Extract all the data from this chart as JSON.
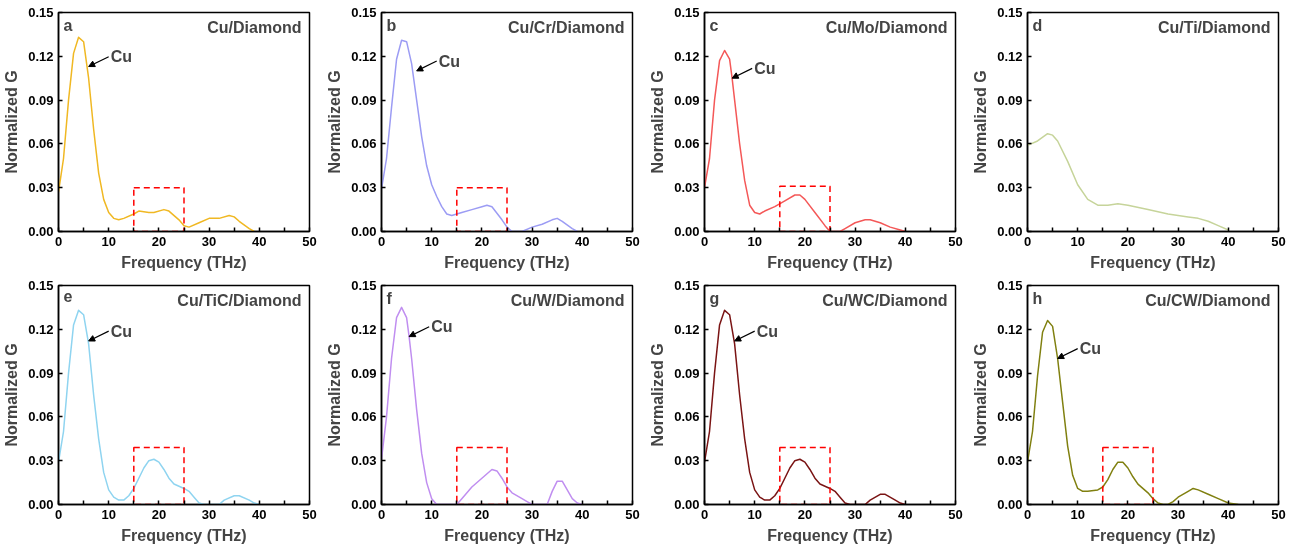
{
  "chart_data": [
    {
      "type": "line",
      "title": "Cu/Diamond",
      "xlabel": "Frequency (THz)",
      "ylabel": "Normalized G",
      "annotations": [
        "a",
        {
          "text": "Cu",
          "x": 6,
          "y": 0.113
        }
      ],
      "xlim": [
        0,
        50
      ],
      "ylim": [
        0,
        0.15
      ],
      "xticks": [
        0,
        {
          "value": 5,
          "label": null
        },
        10,
        {
          "value": 15,
          "label": null
        },
        20,
        {
          "value": 25,
          "label": null
        },
        30,
        {
          "value": 35,
          "label": null
        },
        40,
        {
          "value": 45,
          "label": null
        },
        50
      ],
      "yticks": [
        {
          "value": 0,
          "label": "0.00"
        },
        {
          "value": 0.03,
          "label": "0.03"
        },
        {
          "value": 0.06,
          "label": "0.06"
        },
        {
          "value": 0.09,
          "label": "0.09"
        },
        {
          "value": 0.12,
          "label": "0.12"
        },
        {
          "value": 0.15,
          "label": "0.15"
        }
      ],
      "grid": false,
      "line_style": "solid",
      "series": [
        {
          "color": "#f0b823",
          "x": [
            0,
            1,
            2,
            3,
            4,
            5,
            6,
            7,
            8,
            9,
            10,
            11,
            12,
            13,
            15,
            16,
            18,
            19,
            21,
            22,
            24,
            25,
            26,
            28,
            30,
            32,
            34,
            35,
            36,
            38,
            39
          ],
          "values": [
            0.027,
            0.05,
            0.09,
            0.122,
            0.133,
            0.13,
            0.105,
            0.07,
            0.04,
            0.022,
            0.013,
            0.009,
            0.008,
            0.009,
            0.012,
            0.014,
            0.013,
            0.013,
            0.015,
            0.014,
            0.008,
            0.004,
            0.003,
            0.006,
            0.009,
            0.009,
            0.011,
            0.01,
            0.007,
            0.002,
            0.0
          ]
        },
        {
          "type": "bar",
          "color": "#ff0000",
          "line_style": "dashed",
          "x": [
            20
          ],
          "values": [
            0.03
          ]
        }
      ]
    },
    {
      "type": "line",
      "title": "Cu/Cr/Diamond",
      "xlabel": "Frequency (THz)",
      "ylabel": "Normalized G",
      "annotations": [
        "b",
        {
          "text": "Cu",
          "x": 7,
          "y": 0.11
        }
      ],
      "xlim": [
        0,
        50
      ],
      "ylim": [
        0,
        0.15
      ],
      "xticks": [
        0,
        {
          "value": 5,
          "label": null
        },
        10,
        {
          "value": 15,
          "label": null
        },
        20,
        {
          "value": 25,
          "label": null
        },
        30,
        {
          "value": 35,
          "label": null
        },
        40,
        {
          "value": 45,
          "label": null
        },
        50
      ],
      "yticks": [
        {
          "value": 0,
          "label": "0.00"
        },
        {
          "value": 0.03,
          "label": "0.03"
        },
        {
          "value": 0.06,
          "label": "0.06"
        },
        {
          "value": 0.09,
          "label": "0.09"
        },
        {
          "value": 0.12,
          "label": "0.12"
        },
        {
          "value": 0.15,
          "label": "0.15"
        }
      ],
      "grid": false,
      "line_style": "solid",
      "series": [
        {
          "color": "#9c9cf4",
          "x": [
            0,
            1,
            2,
            3,
            4,
            5,
            6,
            7,
            8,
            9,
            10,
            11,
            12,
            13,
            14,
            16,
            18,
            20,
            21,
            22,
            24,
            25,
            26,
            27,
            28,
            30,
            32,
            34,
            35,
            36,
            38,
            39
          ],
          "values": [
            0.029,
            0.05,
            0.085,
            0.118,
            0.131,
            0.13,
            0.115,
            0.09,
            0.065,
            0.045,
            0.032,
            0.024,
            0.017,
            0.012,
            0.011,
            0.013,
            0.015,
            0.017,
            0.018,
            0.017,
            0.008,
            0.003,
            0.0,
            null,
            0.0,
            0.003,
            0.005,
            0.008,
            0.009,
            0.007,
            0.002,
            0.0
          ]
        },
        {
          "type": "bar",
          "color": "#ff0000",
          "line_style": "dashed",
          "x": [
            20
          ],
          "values": [
            0.03
          ]
        }
      ]
    },
    {
      "type": "line",
      "title": "Cu/Mo/Diamond",
      "xlabel": "Frequency (THz)",
      "ylabel": "Normalized G",
      "annotations": [
        "c",
        {
          "text": "Cu",
          "x": 5.5,
          "y": 0.105
        }
      ],
      "xlim": [
        0,
        50
      ],
      "ylim": [
        0,
        0.15
      ],
      "xticks": [
        0,
        {
          "value": 5,
          "label": null
        },
        10,
        {
          "value": 15,
          "label": null
        },
        20,
        {
          "value": 25,
          "label": null
        },
        30,
        {
          "value": 35,
          "label": null
        },
        40,
        {
          "value": 45,
          "label": null
        },
        50
      ],
      "yticks": [
        {
          "value": 0,
          "label": "0.00"
        },
        {
          "value": 0.03,
          "label": "0.03"
        },
        {
          "value": 0.06,
          "label": "0.06"
        },
        {
          "value": 0.09,
          "label": "0.09"
        },
        {
          "value": 0.12,
          "label": "0.12"
        },
        {
          "value": 0.15,
          "label": "0.15"
        }
      ],
      "grid": false,
      "line_style": "solid",
      "series": [
        {
          "color": "#f45858",
          "x": [
            0,
            1,
            2,
            3,
            4,
            5,
            5.5,
            6,
            7,
            8,
            9,
            10,
            11,
            12,
            14,
            16,
            18,
            19,
            20,
            22,
            24,
            25,
            27,
            28,
            30,
            32,
            33,
            35,
            37,
            39,
            40
          ],
          "values": [
            0.03,
            0.05,
            0.09,
            0.117,
            0.124,
            0.118,
            0.105,
            0.09,
            0.06,
            0.035,
            0.018,
            0.013,
            0.012,
            0.014,
            0.017,
            0.021,
            0.025,
            0.025,
            0.022,
            0.013,
            0.004,
            0.0,
            0.0,
            0.002,
            0.006,
            0.008,
            0.008,
            0.006,
            0.003,
            0.001,
            0.0
          ]
        },
        {
          "type": "bar",
          "color": "#ff0000",
          "line_style": "dashed",
          "x": [
            20
          ],
          "values": [
            0.031
          ]
        }
      ]
    },
    {
      "type": "line",
      "title": "Cu/Ti/Diamond",
      "xlabel": "Frequency (THz)",
      "ylabel": "Normalized G",
      "annotations": [
        "d"
      ],
      "xlim": [
        0,
        50
      ],
      "ylim": [
        0,
        0.15
      ],
      "xticks": [
        0,
        {
          "value": 5,
          "label": null
        },
        10,
        {
          "value": 15,
          "label": null
        },
        20,
        {
          "value": 25,
          "label": null
        },
        30,
        {
          "value": 35,
          "label": null
        },
        40,
        {
          "value": 45,
          "label": null
        },
        50
      ],
      "yticks": [
        {
          "value": 0,
          "label": "0.00"
        },
        {
          "value": 0.03,
          "label": "0.03"
        },
        {
          "value": 0.06,
          "label": "0.06"
        },
        {
          "value": 0.09,
          "label": "0.09"
        },
        {
          "value": 0.12,
          "label": "0.12"
        },
        {
          "value": 0.15,
          "label": "0.15"
        }
      ],
      "grid": false,
      "line_style": "solid",
      "series": [
        {
          "color": "#c6d49a",
          "x": [
            0,
            2,
            4,
            5,
            6,
            8,
            10,
            12,
            14,
            16,
            18,
            20,
            24,
            28,
            32,
            34,
            36,
            38,
            40
          ],
          "values": [
            0.059,
            0.062,
            0.067,
            0.066,
            0.062,
            0.048,
            0.032,
            0.022,
            0.018,
            0.018,
            0.019,
            0.018,
            0.015,
            0.012,
            0.01,
            0.009,
            0.007,
            0.004,
            0.001
          ]
        }
      ]
    },
    {
      "type": "line",
      "title": "Cu/TiC/Diamond",
      "xlabel": "Frequency (THz)",
      "ylabel": "Normalized G",
      "annotations": [
        "e",
        {
          "text": "Cu",
          "x": 6,
          "y": 0.112
        }
      ],
      "xlim": [
        0,
        50
      ],
      "ylim": [
        0,
        0.15
      ],
      "xticks": [
        0,
        {
          "value": 5,
          "label": null
        },
        10,
        {
          "value": 15,
          "label": null
        },
        20,
        {
          "value": 25,
          "label": null
        },
        30,
        {
          "value": 35,
          "label": null
        },
        40,
        {
          "value": 45,
          "label": null
        },
        50
      ],
      "yticks": [
        {
          "value": 0,
          "label": "0.00"
        },
        {
          "value": 0.03,
          "label": "0.03"
        },
        {
          "value": 0.06,
          "label": "0.06"
        },
        {
          "value": 0.09,
          "label": "0.09"
        },
        {
          "value": 0.12,
          "label": "0.12"
        },
        {
          "value": 0.15,
          "label": "0.15"
        }
      ],
      "grid": false,
      "line_style": "solid",
      "series": [
        {
          "color": "#8fd4f0",
          "x": [
            0,
            1,
            2,
            3,
            4,
            5,
            6,
            7,
            8,
            9,
            10,
            11,
            12,
            13,
            14,
            15,
            16,
            17,
            18,
            19,
            20,
            21,
            22,
            23,
            25,
            26,
            27,
            28,
            29,
            32,
            33,
            35,
            36,
            38,
            39,
            40
          ],
          "values": [
            0.029,
            0.05,
            0.09,
            0.123,
            0.133,
            0.13,
            0.11,
            0.075,
            0.045,
            0.022,
            0.01,
            0.005,
            0.003,
            0.003,
            0.006,
            0.011,
            0.018,
            0.025,
            0.03,
            0.031,
            0.029,
            0.024,
            0.018,
            0.014,
            0.011,
            0.009,
            0.005,
            0.001,
            0.0,
            0.0,
            0.003,
            0.006,
            0.006,
            0.003,
            0.001,
            0.0
          ]
        },
        {
          "type": "bar",
          "color": "#ff0000",
          "line_style": "dashed",
          "x": [
            20
          ],
          "values": [
            0.039
          ]
        }
      ]
    },
    {
      "type": "line",
      "title": "Cu/W/Diamond",
      "xlabel": "Frequency (THz)",
      "ylabel": "Normalized G",
      "annotations": [
        "f",
        {
          "text": "Cu",
          "x": 5.5,
          "y": 0.115
        }
      ],
      "xlim": [
        0,
        50
      ],
      "ylim": [
        0,
        0.15
      ],
      "xticks": [
        0,
        {
          "value": 5,
          "label": null
        },
        10,
        {
          "value": 15,
          "label": null
        },
        20,
        {
          "value": 25,
          "label": null
        },
        30,
        {
          "value": 35,
          "label": null
        },
        40,
        {
          "value": 45,
          "label": null
        },
        50
      ],
      "yticks": [
        {
          "value": 0,
          "label": "0.00"
        },
        {
          "value": 0.03,
          "label": "0.03"
        },
        {
          "value": 0.06,
          "label": "0.06"
        },
        {
          "value": 0.09,
          "label": "0.09"
        },
        {
          "value": 0.12,
          "label": "0.12"
        },
        {
          "value": 0.15,
          "label": "0.15"
        }
      ],
      "grid": false,
      "line_style": "solid",
      "series": [
        {
          "color": "#c08ef0",
          "x": [
            0,
            1,
            2,
            3,
            4,
            5,
            5.5,
            6,
            7,
            8,
            9,
            10,
            11,
            15,
            16,
            18,
            20,
            22,
            23,
            24,
            25,
            26,
            28,
            29,
            30,
            33,
            34,
            35,
            36,
            37,
            38,
            39,
            40
          ],
          "values": [
            0.031,
            0.06,
            0.1,
            0.128,
            0.135,
            0.128,
            0.115,
            0.1,
            0.065,
            0.035,
            0.015,
            0.004,
            0.0,
            0.0,
            0.004,
            0.012,
            0.018,
            0.024,
            0.023,
            0.018,
            0.012,
            0.008,
            0.004,
            0.002,
            0.0,
            0.0,
            0.009,
            0.016,
            0.016,
            0.01,
            0.004,
            0.001,
            0.0
          ]
        },
        {
          "type": "bar",
          "color": "#ff0000",
          "line_style": "dashed",
          "x": [
            20
          ],
          "values": [
            0.039
          ]
        }
      ]
    },
    {
      "type": "line",
      "title": "Cu/WC/Diamond",
      "xlabel": "Frequency (THz)",
      "ylabel": "Normalized G",
      "annotations": [
        "g",
        {
          "text": "Cu",
          "x": 6,
          "y": 0.112
        }
      ],
      "xlim": [
        0,
        50
      ],
      "ylim": [
        0,
        0.15
      ],
      "xticks": [
        0,
        {
          "value": 5,
          "label": null
        },
        10,
        {
          "value": 15,
          "label": null
        },
        20,
        {
          "value": 25,
          "label": null
        },
        30,
        {
          "value": 35,
          "label": null
        },
        40,
        {
          "value": 45,
          "label": null
        },
        50
      ],
      "yticks": [
        {
          "value": 0,
          "label": "0.00"
        },
        {
          "value": 0.03,
          "label": "0.03"
        },
        {
          "value": 0.06,
          "label": "0.06"
        },
        {
          "value": 0.09,
          "label": "0.09"
        },
        {
          "value": 0.12,
          "label": "0.12"
        },
        {
          "value": 0.15,
          "label": "0.15"
        }
      ],
      "grid": false,
      "line_style": "solid",
      "series": [
        {
          "color": "#7a1414",
          "x": [
            0,
            1,
            2,
            3,
            4,
            5,
            6,
            7,
            8,
            9,
            10,
            11,
            12,
            13,
            14,
            15,
            16,
            17,
            18,
            19,
            20,
            21,
            22,
            23,
            25,
            26,
            27,
            28,
            29,
            32,
            33,
            35,
            36,
            38,
            39,
            40
          ],
          "values": [
            0.029,
            0.05,
            0.09,
            0.123,
            0.133,
            0.13,
            0.11,
            0.075,
            0.045,
            0.022,
            0.01,
            0.005,
            0.003,
            0.003,
            0.006,
            0.011,
            0.018,
            0.025,
            0.03,
            0.031,
            0.029,
            0.024,
            0.018,
            0.014,
            0.011,
            0.009,
            0.005,
            0.001,
            0.0,
            0.0,
            0.003,
            0.007,
            0.007,
            0.003,
            0.001,
            0.0
          ]
        },
        {
          "type": "bar",
          "color": "#ff0000",
          "line_style": "dashed",
          "x": [
            20
          ],
          "values": [
            0.039
          ]
        }
      ]
    },
    {
      "type": "line",
      "title": "Cu/CW/Diamond",
      "xlabel": "Frequency (THz)",
      "ylabel": "Normalized G",
      "annotations": [
        "h",
        {
          "text": "Cu",
          "x": 6,
          "y": 0.1
        }
      ],
      "xlim": [
        0,
        50
      ],
      "ylim": [
        0,
        0.15
      ],
      "xticks": [
        0,
        {
          "value": 5,
          "label": null
        },
        10,
        {
          "value": 15,
          "label": null
        },
        20,
        {
          "value": 25,
          "label": null
        },
        30,
        {
          "value": 35,
          "label": null
        },
        40,
        {
          "value": 45,
          "label": null
        },
        50
      ],
      "yticks": [
        {
          "value": 0,
          "label": "0.00"
        },
        {
          "value": 0.03,
          "label": "0.03"
        },
        {
          "value": 0.06,
          "label": "0.06"
        },
        {
          "value": 0.09,
          "label": "0.09"
        },
        {
          "value": 0.12,
          "label": "0.12"
        },
        {
          "value": 0.15,
          "label": "0.15"
        }
      ],
      "grid": false,
      "line_style": "solid",
      "series": [
        {
          "color": "#808010",
          "x": [
            0,
            1,
            2,
            3,
            4,
            5,
            6,
            7,
            8,
            9,
            10,
            11,
            12,
            14,
            15,
            16,
            17,
            18,
            19,
            20,
            21,
            22,
            24,
            25,
            26,
            27,
            28,
            29,
            30,
            32,
            33,
            34,
            36,
            38,
            40,
            42
          ],
          "values": [
            0.029,
            0.05,
            0.088,
            0.118,
            0.126,
            0.122,
            0.1,
            0.07,
            0.04,
            0.02,
            0.011,
            0.009,
            0.009,
            0.01,
            0.012,
            0.017,
            0.024,
            0.029,
            0.029,
            0.025,
            0.019,
            0.014,
            0.008,
            0.004,
            0.001,
            0.0,
            0.0,
            0.002,
            0.005,
            0.009,
            0.011,
            0.01,
            0.007,
            0.004,
            0.001,
            0.0
          ]
        },
        {
          "type": "bar",
          "color": "#ff0000",
          "line_style": "dashed",
          "x": [
            20
          ],
          "values": [
            0.039
          ]
        }
      ]
    }
  ]
}
